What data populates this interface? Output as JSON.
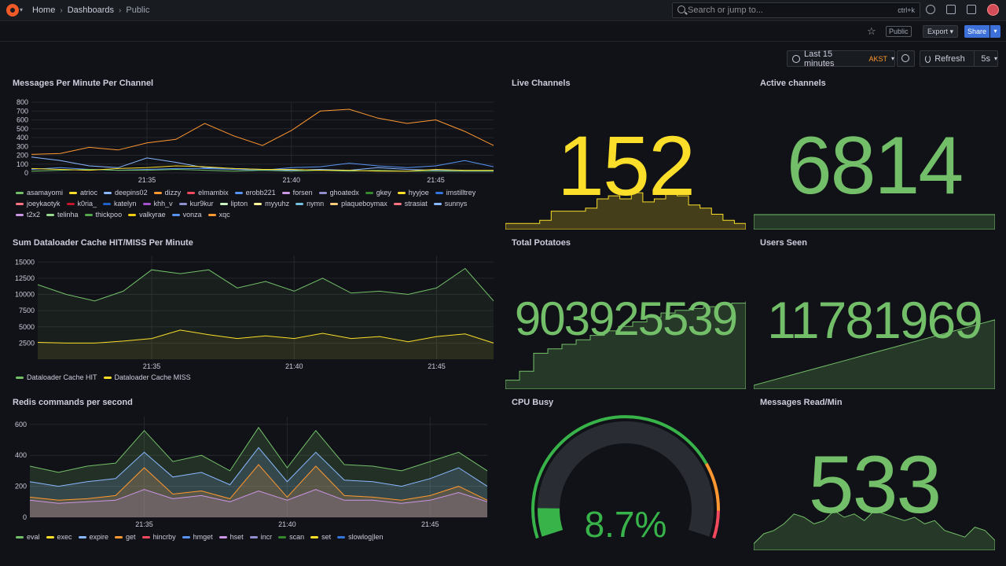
{
  "nav": {
    "breadcrumbs": [
      "Home",
      "Dashboards",
      "Public"
    ],
    "search_placeholder": "Search or jump to...",
    "search_shortcut": "ctrl+k",
    "public_badge": "Public",
    "export_label": "Export",
    "share_label": "Share"
  },
  "toolbar": {
    "time_range": "Last 15 minutes",
    "timezone": "AKST",
    "refresh_label": "Refresh",
    "refresh_interval": "5s"
  },
  "colors": {
    "green": "#73bf69",
    "yellow": "#fade2a",
    "orange": "#ff9830",
    "red": "#f2495c",
    "blue": "#8ab8ff",
    "purple": "#ca95e5",
    "cpu_gauge_track": "#3d71d9"
  },
  "panels": {
    "messages_per_minute": {
      "title": "Messages Per Minute Per Channel",
      "x_ticks": [
        "21:35",
        "21:40",
        "21:45"
      ],
      "y_ticks": [
        "0",
        "100",
        "200",
        "300",
        "400",
        "500",
        "600",
        "700",
        "800"
      ],
      "legend": [
        {
          "name": "asamayomi",
          "color": "#73bf69"
        },
        {
          "name": "atrioc",
          "color": "#fade2a"
        },
        {
          "name": "deepins02",
          "color": "#8ab8ff"
        },
        {
          "name": "dizzy",
          "color": "#ff9830"
        },
        {
          "name": "elmambix",
          "color": "#f2495c"
        },
        {
          "name": "erobb221",
          "color": "#5794f2"
        },
        {
          "name": "forsen",
          "color": "#ca95e5"
        },
        {
          "name": "ghoatedx",
          "color": "#8f8fcc"
        },
        {
          "name": "gkey",
          "color": "#37872d"
        },
        {
          "name": "hyyjoe",
          "color": "#fade2a"
        },
        {
          "name": "imstilltrey",
          "color": "#3274d9"
        },
        {
          "name": "joeykaotyk",
          "color": "#ff7383"
        },
        {
          "name": "k0ria_",
          "color": "#c4162a"
        },
        {
          "name": "katelyn",
          "color": "#1f60c4"
        },
        {
          "name": "khh_v",
          "color": "#a352cc"
        },
        {
          "name": "kur9kur",
          "color": "#8f8fcc"
        },
        {
          "name": "lipton",
          "color": "#c8f2c2"
        },
        {
          "name": "myyuhz",
          "color": "#fff899"
        },
        {
          "name": "nymn",
          "color": "#73bfe0"
        },
        {
          "name": "plaqueboymax",
          "color": "#ffcb7d"
        },
        {
          "name": "strasiat",
          "color": "#ff7383"
        },
        {
          "name": "sunnys",
          "color": "#8ab8ff"
        },
        {
          "name": "t2x2",
          "color": "#ca95e5"
        },
        {
          "name": "telinha",
          "color": "#96d98d"
        },
        {
          "name": "thickpoo",
          "color": "#56a64b"
        },
        {
          "name": "valkyrae",
          "color": "#f2cc0c"
        },
        {
          "name": "vonza",
          "color": "#5794f2"
        },
        {
          "name": "xqc",
          "color": "#ff9830"
        }
      ]
    },
    "live_channels": {
      "title": "Live Channels",
      "value": "152",
      "color": "#fade2a"
    },
    "active_channels": {
      "title": "Active channels",
      "value": "6814",
      "color": "#73bf69"
    },
    "dataloader": {
      "title": "Sum Dataloader Cache HIT/MISS Per Minute",
      "x_ticks": [
        "21:35",
        "21:40",
        "21:45"
      ],
      "y_ticks": [
        "2500",
        "5000",
        "7500",
        "10000",
        "12500",
        "15000"
      ],
      "legend": [
        {
          "name": "Dataloader Cache HIT",
          "color": "#73bf69"
        },
        {
          "name": "Dataloader Cache MISS",
          "color": "#fade2a"
        }
      ]
    },
    "total_potatoes": {
      "title": "Total Potatoes",
      "value": "903925539",
      "color": "#73bf69"
    },
    "users_seen": {
      "title": "Users Seen",
      "value": "11781969",
      "color": "#73bf69"
    },
    "redis": {
      "title": "Redis commands per second",
      "x_ticks": [
        "21:35",
        "21:40",
        "21:45"
      ],
      "y_ticks": [
        "0",
        "200",
        "400",
        "600"
      ],
      "legend": [
        {
          "name": "eval",
          "color": "#73bf69"
        },
        {
          "name": "exec",
          "color": "#fade2a"
        },
        {
          "name": "expire",
          "color": "#8ab8ff"
        },
        {
          "name": "get",
          "color": "#ff9830"
        },
        {
          "name": "hincrby",
          "color": "#f2495c"
        },
        {
          "name": "hmget",
          "color": "#5794f2"
        },
        {
          "name": "hset",
          "color": "#ca95e5"
        },
        {
          "name": "incr",
          "color": "#8f8fcc"
        },
        {
          "name": "scan",
          "color": "#37872d"
        },
        {
          "name": "set",
          "color": "#fade2a"
        },
        {
          "name": "slowlog|len",
          "color": "#3274d9"
        }
      ]
    },
    "cpu_busy": {
      "title": "CPU Busy",
      "value": "8.7%",
      "percent": 8.7,
      "color": "#37b34a"
    },
    "messages_read": {
      "title": "Messages Read/Min",
      "value": "533",
      "color": "#73bf69"
    }
  },
  "chart_data": [
    {
      "type": "line",
      "title": "Messages Per Minute Per Channel",
      "x": [
        "21:31",
        "21:32",
        "21:33",
        "21:34",
        "21:35",
        "21:36",
        "21:37",
        "21:38",
        "21:39",
        "21:40",
        "21:41",
        "21:42",
        "21:43",
        "21:44",
        "21:45",
        "21:46",
        "21:47"
      ],
      "ylim": [
        0,
        800
      ],
      "series": [
        {
          "name": "xqc",
          "values": [
            210,
            220,
            290,
            260,
            340,
            380,
            560,
            420,
            310,
            480,
            700,
            720,
            620,
            560,
            600,
            470,
            310
          ]
        },
        {
          "name": "deepins02",
          "values": [
            180,
            140,
            80,
            60,
            170,
            120,
            60,
            50,
            40,
            30,
            40,
            30,
            60,
            40,
            30,
            20,
            20
          ]
        },
        {
          "name": "erobb221",
          "values": [
            40,
            60,
            40,
            30,
            40,
            50,
            50,
            40,
            30,
            60,
            70,
            110,
            80,
            60,
            80,
            140,
            70
          ]
        },
        {
          "name": "asamayomi",
          "values": [
            20,
            30,
            40,
            30,
            30,
            40,
            30,
            20,
            30,
            20,
            30,
            20,
            30,
            20,
            20,
            20,
            20
          ]
        },
        {
          "name": "atrioc",
          "values": [
            50,
            40,
            30,
            50,
            60,
            80,
            70,
            50,
            40,
            40,
            30,
            30,
            20,
            20,
            40,
            30,
            30
          ]
        }
      ]
    },
    {
      "type": "line",
      "title": "Sum Dataloader Cache HIT/MISS Per Minute",
      "x": [
        "21:31",
        "21:32",
        "21:33",
        "21:34",
        "21:35",
        "21:36",
        "21:37",
        "21:38",
        "21:39",
        "21:40",
        "21:41",
        "21:42",
        "21:43",
        "21:44",
        "21:45",
        "21:46",
        "21:47"
      ],
      "ylim": [
        0,
        16000
      ],
      "series": [
        {
          "name": "Dataloader Cache HIT",
          "values": [
            11500,
            10000,
            9000,
            10500,
            13800,
            13200,
            13800,
            11000,
            12000,
            10500,
            12500,
            10200,
            10500,
            10000,
            11000,
            14000,
            9000
          ]
        },
        {
          "name": "Dataloader Cache MISS",
          "values": [
            2600,
            2500,
            2500,
            2800,
            3200,
            4500,
            3800,
            3200,
            3600,
            3200,
            4000,
            3200,
            3500,
            2700,
            3500,
            3900,
            2500
          ]
        }
      ]
    },
    {
      "type": "area",
      "title": "Redis commands per second",
      "x": [
        "21:31",
        "21:32",
        "21:33",
        "21:34",
        "21:35",
        "21:36",
        "21:37",
        "21:38",
        "21:39",
        "21:40",
        "21:41",
        "21:42",
        "21:43",
        "21:44",
        "21:45",
        "21:46",
        "21:47"
      ],
      "ylim": [
        0,
        650
      ],
      "series": [
        {
          "name": "eval",
          "values": [
            330,
            290,
            330,
            350,
            560,
            360,
            400,
            300,
            580,
            320,
            560,
            340,
            330,
            300,
            360,
            420,
            300
          ]
        },
        {
          "name": "expire",
          "values": [
            230,
            200,
            230,
            250,
            420,
            260,
            290,
            210,
            450,
            230,
            420,
            240,
            230,
            200,
            250,
            320,
            200
          ]
        },
        {
          "name": "get",
          "values": [
            130,
            110,
            120,
            140,
            320,
            150,
            170,
            120,
            340,
            130,
            330,
            140,
            130,
            110,
            140,
            200,
            110
          ]
        },
        {
          "name": "hset",
          "values": [
            110,
            90,
            100,
            110,
            180,
            120,
            140,
            100,
            170,
            110,
            180,
            110,
            110,
            90,
            110,
            160,
            100
          ]
        }
      ]
    },
    {
      "type": "area",
      "title": "Live Channels",
      "series": [
        {
          "name": "",
          "values": [
            10,
            10,
            10,
            15,
            30,
            30,
            30,
            35,
            50,
            55,
            50,
            60,
            45,
            50,
            60,
            55,
            40,
            35,
            25,
            15,
            10,
            10
          ]
        }
      ]
    },
    {
      "type": "area",
      "title": "Active channels",
      "series": [
        {
          "name": "",
          "values": [
            50,
            50,
            50,
            50,
            50,
            50,
            50,
            50,
            50,
            50,
            50,
            50,
            50,
            50,
            50
          ]
        }
      ]
    },
    {
      "type": "area",
      "title": "Total Potatoes",
      "series": [
        {
          "name": "",
          "values": [
            10,
            20,
            40,
            45,
            50,
            55,
            60,
            65,
            70,
            75,
            80,
            85,
            88,
            90,
            92,
            94,
            96,
            98
          ]
        }
      ]
    },
    {
      "type": "area",
      "title": "Users Seen",
      "series": [
        {
          "name": "",
          "values": [
            5,
            10,
            15,
            20,
            25,
            30,
            35,
            40,
            45,
            50,
            55,
            60,
            65,
            70,
            75,
            80,
            85,
            90
          ]
        }
      ]
    },
    {
      "type": "area",
      "title": "Messages Read/Min",
      "series": [
        {
          "name": "",
          "values": [
            10,
            25,
            30,
            40,
            55,
            50,
            40,
            45,
            60,
            50,
            55,
            45,
            60,
            55,
            50,
            45,
            50,
            40,
            45,
            30,
            25,
            20,
            35,
            30,
            15
          ]
        }
      ]
    }
  ]
}
